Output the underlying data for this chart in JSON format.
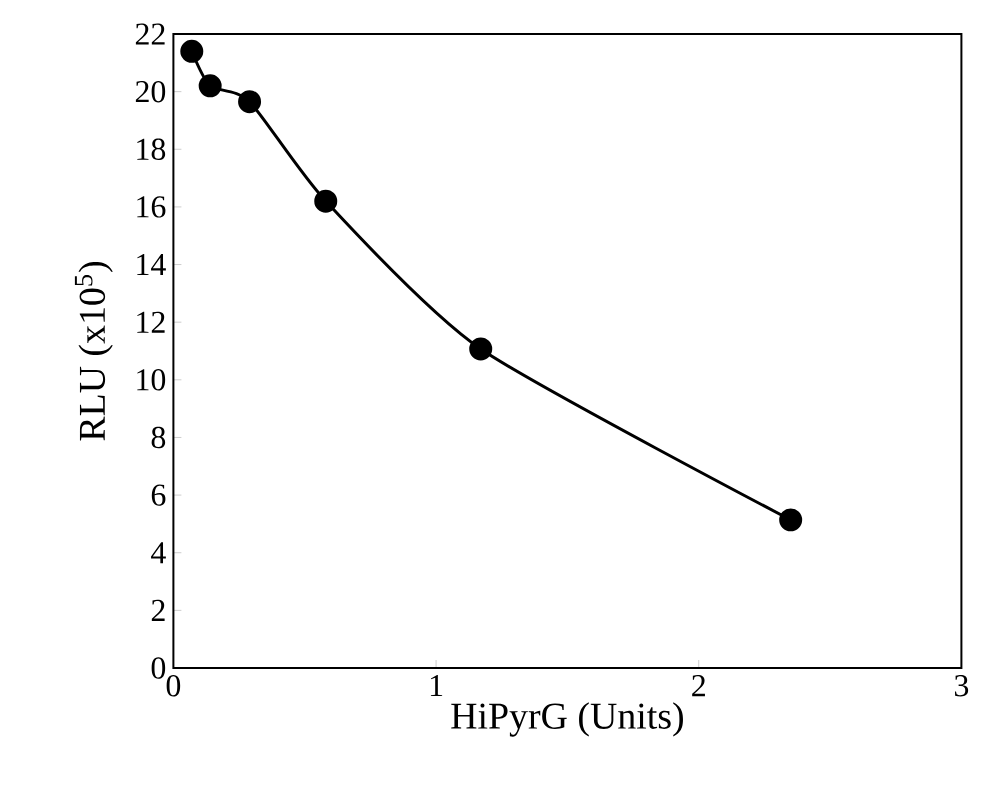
{
  "chart_data": {
    "type": "line",
    "xlabel": "HiPyrG (Units)",
    "ylabel": "RLU (x10$^{5}$)",
    "x": [
      0.07,
      0.14,
      0.29,
      0.58,
      1.17,
      2.35
    ],
    "series": [
      {
        "color": "#000000",
        "values": [
          21.4,
          20.2,
          19.65,
          16.2,
          11.07,
          5.14
        ]
      }
    ],
    "xlim": [
      0,
      3
    ],
    "xticks": [
      0,
      1,
      2,
      3
    ],
    "ylim": [
      0,
      22
    ],
    "yticks": [
      0,
      2,
      4,
      6,
      8,
      10,
      12,
      14,
      16,
      18,
      20,
      22
    ],
    "marker": "circle",
    "line_style": "solid",
    "grid": false
  }
}
